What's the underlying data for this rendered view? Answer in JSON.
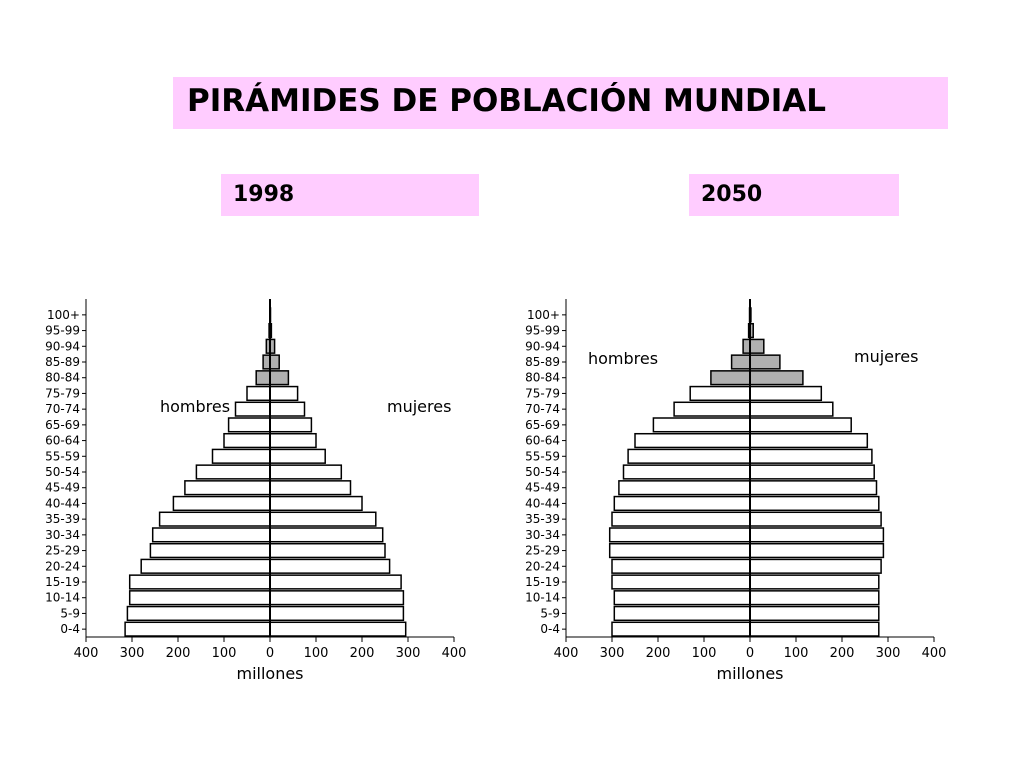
{
  "header": {
    "title": "PIRÁMIDES DE POBLACIÓN MUNDIAL",
    "year_left": "1998",
    "year_right": "2050"
  },
  "colors": {
    "banner": "#ffccff",
    "bar_fill": "#ffffff",
    "bar_fill_older": "#b0b0b0",
    "bar_stroke": "#000000"
  },
  "chart_data": [
    {
      "type": "bar",
      "orientation": "horizontal",
      "title": "1998",
      "xlabel": "millones",
      "ylabel": "",
      "xlim": [
        -400,
        400
      ],
      "xticks": [
        -400,
        -300,
        -200,
        -100,
        0,
        100,
        200,
        300,
        400
      ],
      "xtick_labels": [
        "400",
        "300",
        "200",
        "100",
        "0",
        "100",
        "200",
        "300",
        "400"
      ],
      "categories": [
        "0-4",
        "5-9",
        "10-14",
        "15-19",
        "20-24",
        "25-29",
        "30-34",
        "35-39",
        "40-44",
        "45-49",
        "50-54",
        "55-59",
        "60-64",
        "65-69",
        "70-74",
        "75-79",
        "80-84",
        "85-89",
        "90-94",
        "95-99",
        "100+"
      ],
      "series": [
        {
          "name": "hombres",
          "values": [
            315,
            310,
            305,
            305,
            280,
            260,
            255,
            240,
            210,
            185,
            160,
            125,
            100,
            90,
            75,
            50,
            30,
            15,
            8,
            2,
            0.5
          ]
        },
        {
          "name": "mujeres",
          "values": [
            295,
            290,
            290,
            285,
            260,
            250,
            245,
            230,
            200,
            175,
            155,
            120,
            100,
            90,
            75,
            60,
            40,
            20,
            10,
            3,
            1
          ]
        }
      ],
      "highlight_from": "80-84",
      "grid": false
    },
    {
      "type": "bar",
      "orientation": "horizontal",
      "title": "2050",
      "xlabel": "millones",
      "ylabel": "",
      "xlim": [
        -400,
        400
      ],
      "xticks": [
        -400,
        -300,
        -200,
        -100,
        0,
        100,
        200,
        300,
        400
      ],
      "xtick_labels": [
        "400",
        "300",
        "200",
        "100",
        "0",
        "100",
        "200",
        "300",
        "400"
      ],
      "categories": [
        "0-4",
        "5-9",
        "10-14",
        "15-19",
        "20-24",
        "25-29",
        "30-34",
        "35-39",
        "40-44",
        "45-49",
        "50-54",
        "55-59",
        "60-64",
        "65-69",
        "70-74",
        "75-79",
        "80-84",
        "85-89",
        "90-94",
        "95-99",
        "100+"
      ],
      "series": [
        {
          "name": "hombres",
          "values": [
            300,
            295,
            295,
            300,
            300,
            305,
            305,
            300,
            295,
            285,
            275,
            265,
            250,
            210,
            165,
            130,
            85,
            40,
            15,
            3,
            1
          ]
        },
        {
          "name": "mujeres",
          "values": [
            280,
            280,
            280,
            280,
            285,
            290,
            290,
            285,
            280,
            275,
            270,
            265,
            255,
            220,
            180,
            155,
            115,
            65,
            30,
            7,
            2
          ]
        }
      ],
      "highlight_from": "80-84",
      "grid": false
    }
  ]
}
